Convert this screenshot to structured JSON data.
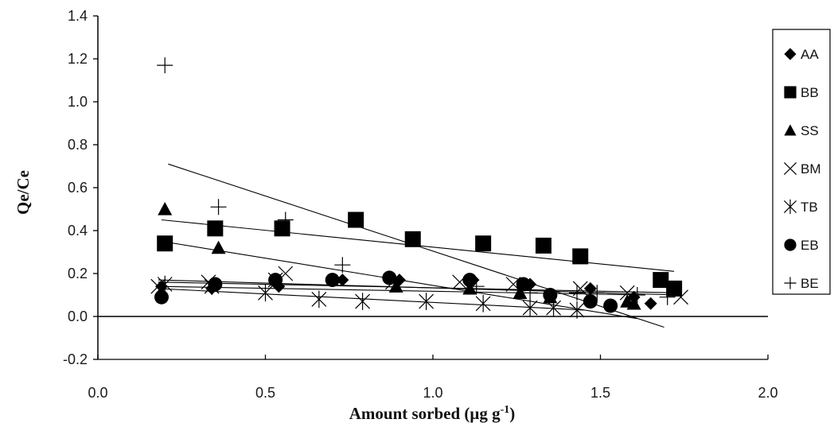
{
  "chart_data": {
    "type": "scatter",
    "title": "",
    "xlabel_main": "Amount sorbed (μg g",
    "xlabel_sup": "-1",
    "xlabel_tail": ")",
    "ylabel": "Qe/Ce",
    "xlim": [
      0.0,
      2.0
    ],
    "ylim": [
      -0.2,
      1.4
    ],
    "xticks": [
      "0.0",
      "0.5",
      "1.0",
      "1.5",
      "2.0"
    ],
    "yticks": [
      "-0.2",
      "0.0",
      "0.2",
      "0.4",
      "0.6",
      "0.8",
      "1.0",
      "1.2",
      "1.4"
    ],
    "grid": false,
    "legend_position": "right",
    "series": [
      {
        "name": "AA",
        "marker": "diamond",
        "points": [
          [
            0.19,
            0.14
          ],
          [
            0.34,
            0.13
          ],
          [
            0.54,
            0.14
          ],
          [
            0.73,
            0.17
          ],
          [
            0.9,
            0.17
          ],
          [
            1.12,
            0.17
          ],
          [
            1.29,
            0.15
          ],
          [
            1.47,
            0.13
          ],
          [
            1.6,
            0.09
          ],
          [
            1.65,
            0.06
          ]
        ],
        "fit": [
          [
            0.18,
            0.16
          ],
          [
            1.73,
            0.11
          ]
        ]
      },
      {
        "name": "BB",
        "marker": "square",
        "points": [
          [
            0.2,
            0.34
          ],
          [
            0.35,
            0.41
          ],
          [
            0.55,
            0.41
          ],
          [
            0.77,
            0.45
          ],
          [
            0.94,
            0.36
          ],
          [
            1.15,
            0.34
          ],
          [
            1.33,
            0.33
          ],
          [
            1.44,
            0.28
          ],
          [
            1.68,
            0.17
          ],
          [
            1.72,
            0.13
          ]
        ],
        "fit": [
          [
            0.19,
            0.45
          ],
          [
            1.72,
            0.21
          ]
        ]
      },
      {
        "name": "SS",
        "marker": "triangle",
        "points": [
          [
            0.2,
            0.5
          ],
          [
            0.36,
            0.32
          ],
          [
            0.89,
            0.14
          ],
          [
            1.11,
            0.13
          ],
          [
            1.26,
            0.11
          ],
          [
            1.35,
            0.09
          ],
          [
            1.58,
            0.07
          ],
          [
            1.6,
            0.06
          ]
        ],
        "fit": [
          [
            0.19,
            0.35
          ],
          [
            1.61,
            -0.01
          ]
        ]
      },
      {
        "name": "BM",
        "marker": "x",
        "points": [
          [
            0.18,
            0.14
          ],
          [
            0.33,
            0.16
          ],
          [
            0.53,
            0.17
          ],
          [
            0.56,
            0.2
          ],
          [
            0.88,
            0.16
          ],
          [
            1.08,
            0.16
          ],
          [
            1.24,
            0.15
          ],
          [
            1.44,
            0.13
          ],
          [
            1.58,
            0.11
          ],
          [
            1.74,
            0.09
          ]
        ],
        "fit": [
          [
            0.18,
            0.17
          ],
          [
            1.73,
            0.1
          ]
        ]
      },
      {
        "name": "TB",
        "marker": "asterisk",
        "points": [
          [
            0.2,
            0.15
          ],
          [
            0.34,
            0.14
          ],
          [
            0.5,
            0.11
          ],
          [
            0.66,
            0.08
          ],
          [
            0.79,
            0.07
          ],
          [
            0.98,
            0.07
          ],
          [
            1.15,
            0.06
          ],
          [
            1.29,
            0.04
          ],
          [
            1.36,
            0.04
          ],
          [
            1.43,
            0.03
          ]
        ],
        "fit": [
          [
            0.18,
            0.13
          ],
          [
            1.45,
            0.03
          ]
        ]
      },
      {
        "name": "EB",
        "marker": "circle",
        "points": [
          [
            0.19,
            0.09
          ],
          [
            0.35,
            0.15
          ],
          [
            0.53,
            0.17
          ],
          [
            0.7,
            0.17
          ],
          [
            0.87,
            0.18
          ],
          [
            1.11,
            0.17
          ],
          [
            1.27,
            0.15
          ],
          [
            1.35,
            0.1
          ],
          [
            1.47,
            0.07
          ],
          [
            1.53,
            0.05
          ]
        ],
        "fit": [
          [
            0.18,
            0.14
          ],
          [
            1.62,
            0.1
          ]
        ]
      },
      {
        "name": "BE",
        "marker": "plus",
        "points": [
          [
            0.2,
            1.17
          ],
          [
            0.36,
            0.51
          ],
          [
            0.56,
            0.45
          ],
          [
            0.73,
            0.24
          ],
          [
            1.13,
            0.14
          ],
          [
            1.29,
            0.11
          ],
          [
            1.43,
            0.11
          ],
          [
            1.49,
            0.11
          ],
          [
            1.61,
            0.1
          ],
          [
            1.7,
            0.09
          ]
        ],
        "fit": [
          [
            0.21,
            0.71
          ],
          [
            1.69,
            -0.05
          ]
        ]
      }
    ]
  }
}
